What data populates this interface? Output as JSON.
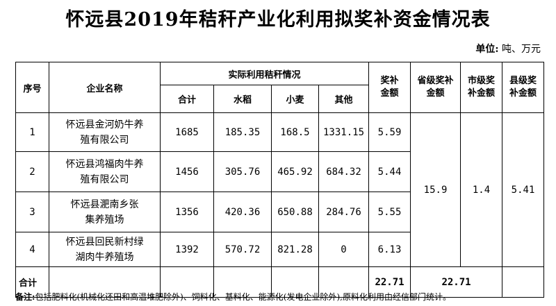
{
  "title": "怀远县2019年秸秆产业化利用拟奖补资金情况表",
  "unit": {
    "label": "单位:",
    "value": "吨、万元"
  },
  "headers": {
    "seq": "序号",
    "company": "企业名称",
    "actual": "实际利用秸秆情况",
    "total": "合计",
    "rice": "水稻",
    "wheat": "小麦",
    "other": "其他",
    "reward": "奖补金额",
    "province": "省级奖补金额",
    "city": "市级奖补金额",
    "county": "县级奖补金额"
  },
  "rows": [
    {
      "seq": "1",
      "name": "怀远县金河奶牛养殖有限公司",
      "total": "1685",
      "rice": "185.35",
      "wheat": "168.5",
      "other": "1331.15",
      "reward": "5.59"
    },
    {
      "seq": "2",
      "name": "怀远县鸿福肉牛养殖有限公司",
      "total": "1456",
      "rice": "305.76",
      "wheat": "465.92",
      "other": "684.32",
      "reward": "5.44"
    },
    {
      "seq": "3",
      "name": "怀远县淝南乡张集养殖场",
      "total": "1356",
      "rice": "420.36",
      "wheat": "650.88",
      "other": "284.76",
      "reward": "5.55"
    },
    {
      "seq": "4",
      "name": "怀远县回民新村绿湖肉牛养殖场",
      "total": "1392",
      "rice": "570.72",
      "wheat": "821.28",
      "other": "0",
      "reward": "6.13"
    }
  ],
  "merged": {
    "province": "15.9",
    "city": "1.4",
    "county": "5.41"
  },
  "summary": {
    "label": "合计",
    "reward": "22.71",
    "levels_total": "22.71"
  },
  "note": {
    "label": "备注:",
    "text": "包括肥料化(机械化还田和高温堆肥除外)、饲料化、基料化、能源化(发电企业除外),原料化利用由经信部门统计。"
  }
}
